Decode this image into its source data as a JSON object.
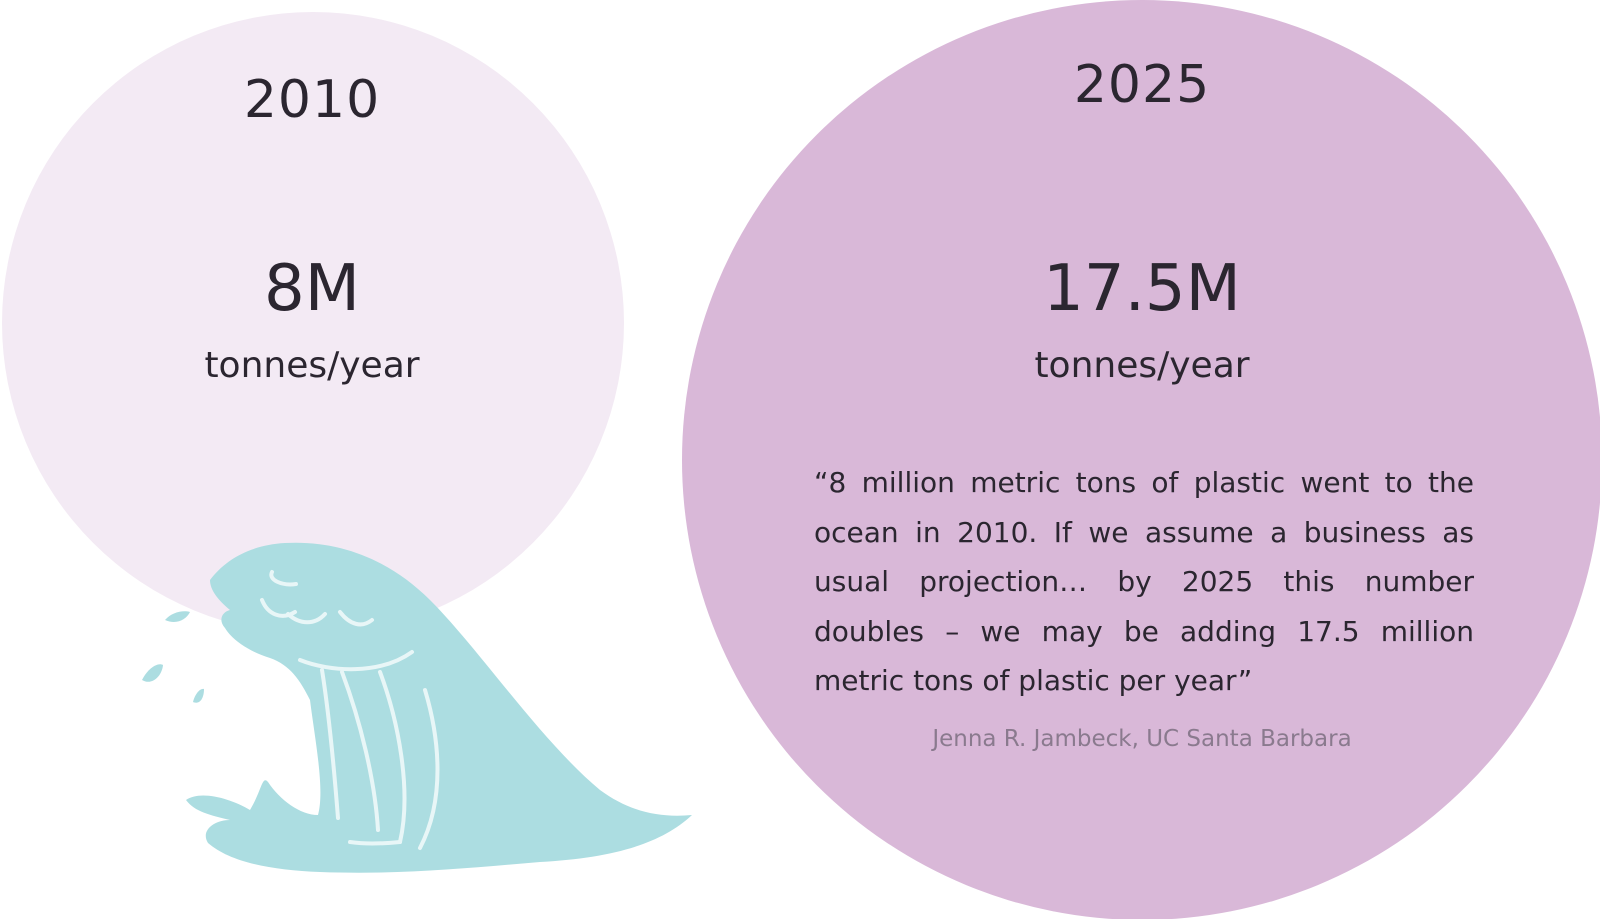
{
  "colors": {
    "circle_2010": "#f3eaf4",
    "circle_2025": "#d9b8d8",
    "wave": "#acdde1",
    "wave_lines": "#e8f6f7",
    "text": "#2b2630",
    "source_text": "#8a7a8e"
  },
  "left": {
    "year": "2010",
    "amount": "8M",
    "unit": "tonnes/year"
  },
  "right": {
    "year": "2025",
    "amount": "17.5M",
    "unit": "tonnes/year",
    "quote": "“8 million metric tons of plastic went to the ocean in 2010. If we assume a business as usual projection… by 2025 this number doubles – we may be adding 17.5 million metric tons of plastic per year”",
    "source": "Jenna R. Jambeck, UC Santa Barbara"
  },
  "icons": {
    "wave": "ocean-wave-icon"
  }
}
